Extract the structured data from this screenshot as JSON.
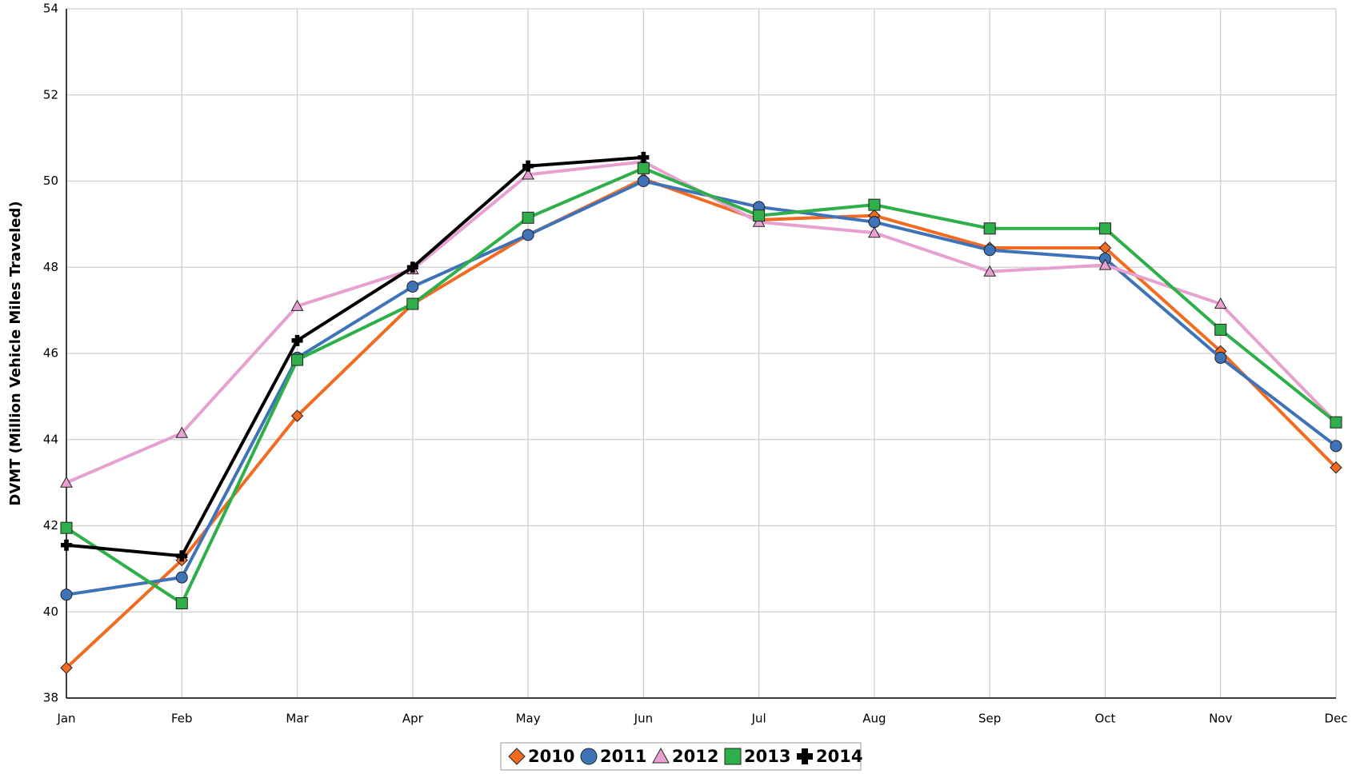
{
  "chart_data": {
    "type": "line",
    "ylabel": "DVMT (Million Vehicle Miles Traveled)",
    "categories": [
      "Jan",
      "Feb",
      "Mar",
      "Apr",
      "May",
      "Jun",
      "Jul",
      "Aug",
      "Sep",
      "Oct",
      "Nov",
      "Dec"
    ],
    "series": [
      {
        "name": "2010",
        "color": "#f26b21",
        "marker": "diamond",
        "values": [
          38.7,
          41.2,
          44.55,
          47.15,
          48.75,
          50.05,
          49.1,
          49.2,
          48.45,
          48.45,
          46.05,
          43.35
        ]
      },
      {
        "name": "2011",
        "color": "#3f73b8",
        "marker": "circle",
        "values": [
          40.4,
          40.8,
          45.9,
          47.55,
          48.75,
          50.0,
          49.4,
          49.05,
          48.4,
          48.2,
          45.9,
          43.85
        ]
      },
      {
        "name": "2012",
        "color": "#e6a1d0",
        "marker": "triangle",
        "values": [
          43.0,
          44.15,
          47.1,
          47.95,
          50.15,
          50.45,
          49.05,
          48.8,
          47.9,
          48.05,
          47.15,
          44.4
        ]
      },
      {
        "name": "2013",
        "color": "#2eaf4a",
        "marker": "square",
        "values": [
          41.95,
          40.2,
          45.85,
          47.15,
          49.15,
          50.3,
          49.2,
          49.45,
          48.9,
          48.9,
          46.55,
          44.4
        ]
      },
      {
        "name": "2014",
        "color": "#000000",
        "marker": "cross",
        "values": [
          41.55,
          41.3,
          46.3,
          48.0,
          50.35,
          50.55,
          null,
          null,
          null,
          null,
          null,
          null
        ]
      }
    ],
    "ylim": [
      38,
      54
    ],
    "yticks": [
      38,
      40,
      42,
      44,
      46,
      48,
      50,
      52,
      54
    ],
    "grid": true,
    "legend": "bottom"
  }
}
